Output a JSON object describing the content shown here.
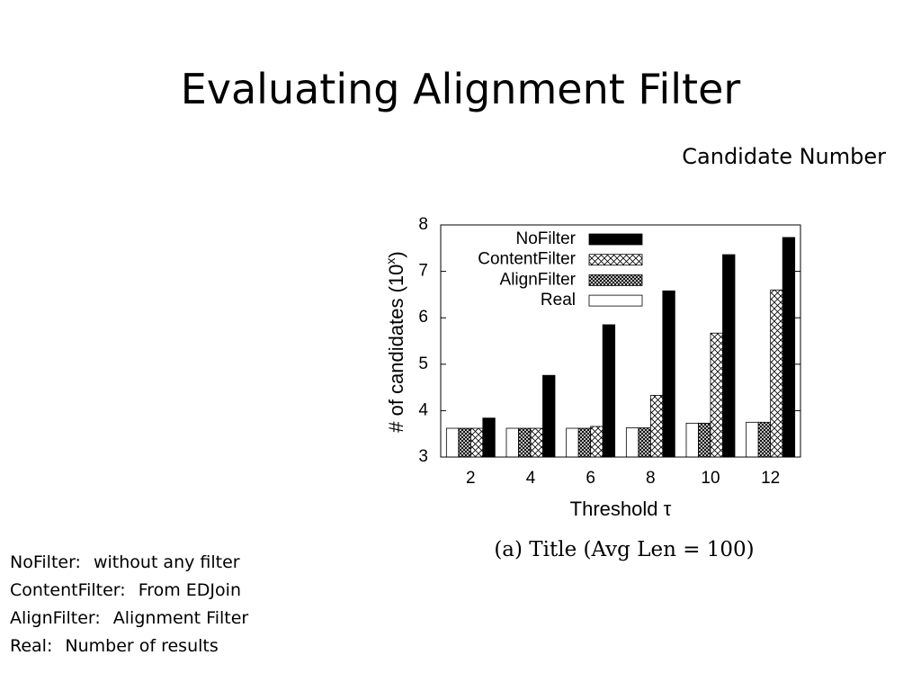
{
  "title": "Evaluating Alignment Filter",
  "subtitle": "Candidate Number",
  "notes": [
    {
      "term": "NoFilter:",
      "desc": "without any filter"
    },
    {
      "term": "ContentFilter:",
      "desc": "From EDJoin"
    },
    {
      "term": "AlignFilter:",
      "desc": "Alignment Filter"
    },
    {
      "term": "Real:",
      "desc": "Number of results"
    }
  ],
  "chart_data": {
    "type": "bar",
    "caption": "(a) Title (Avg Len = 100)",
    "x_label": "Threshold τ",
    "y_label": [
      "# of candidates (10",
      "x",
      ")"
    ],
    "categories": [
      "2",
      "4",
      "6",
      "8",
      "10",
      "12"
    ],
    "series": [
      {
        "name": "Real",
        "color": "#ffffff",
        "pattern": "solid",
        "values": [
          3.62,
          3.62,
          3.62,
          3.63,
          3.73,
          3.75
        ]
      },
      {
        "name": "AlignFilter",
        "color": "#000000",
        "pattern": "dense-crosshatch",
        "values": [
          3.62,
          3.62,
          3.62,
          3.63,
          3.73,
          3.75
        ]
      },
      {
        "name": "ContentFilter",
        "color": "#000000",
        "pattern": "crosshatch",
        "values": [
          3.62,
          3.62,
          3.66,
          4.33,
          5.67,
          6.6
        ]
      },
      {
        "name": "NoFilter",
        "color": "#000000",
        "pattern": "solid",
        "values": [
          3.84,
          4.76,
          5.85,
          6.58,
          7.36,
          7.73
        ]
      }
    ],
    "legend_order": "reverse",
    "legend": "top-left",
    "ylim": [
      3,
      8
    ],
    "yticks": [
      3,
      4,
      5,
      6,
      7,
      8
    ]
  }
}
